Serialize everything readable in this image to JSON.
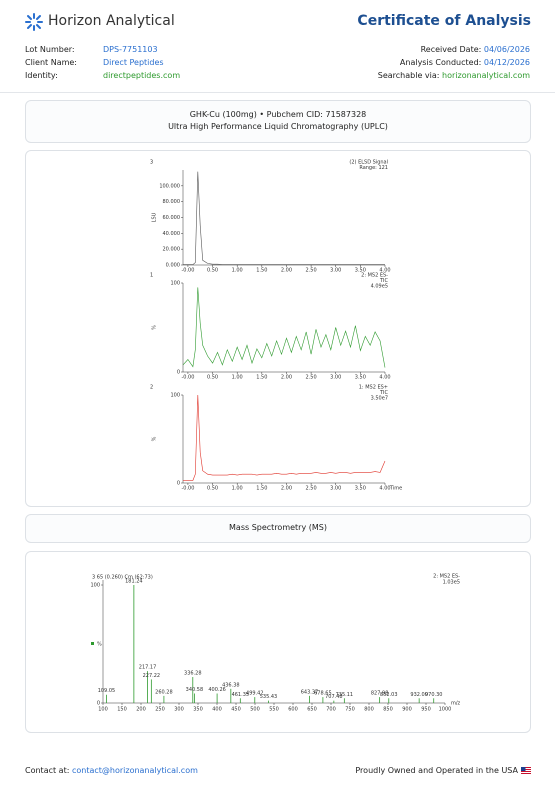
{
  "header": {
    "logo_text": "Horizon Analytical",
    "title": "Certificate of Analysis"
  },
  "info": {
    "left": [
      {
        "label": "Lot Number:",
        "value": "DPS-7751103"
      },
      {
        "label": "Client Name:",
        "value": "Direct Peptides"
      },
      {
        "label": "Identity:",
        "value": "directpeptides.com"
      }
    ],
    "right": [
      {
        "label": "Received Date:",
        "value": "04/06/2026"
      },
      {
        "label": "Analysis Conducted:",
        "value": "04/12/2026"
      },
      {
        "label": "Searchable via:",
        "value": "horizonanalytical.com"
      }
    ]
  },
  "uplc": {
    "compound": "GHK-Cu (100mg) • Pubchem CID: 71587328",
    "method": "Ultra High Performance Liquid Chromatography (UPLC)"
  },
  "chromatography": {
    "x": [
      -0.1,
      0,
      0.1,
      0.15,
      0.2,
      0.25,
      0.3,
      0.4,
      0.5,
      0.6,
      0.7,
      0.8,
      0.9,
      1.0,
      1.1,
      1.2,
      1.3,
      1.4,
      1.5,
      1.6,
      1.7,
      1.8,
      1.9,
      2.0,
      2.1,
      2.2,
      2.3,
      2.4,
      2.5,
      2.6,
      2.7,
      2.8,
      2.9,
      3.0,
      3.1,
      3.2,
      3.3,
      3.4,
      3.5,
      3.6,
      3.7,
      3.8,
      3.9,
      4.0
    ],
    "xlim": [
      -0.1,
      4.0
    ],
    "xticks": [
      {
        "value": 0,
        "label": "-0.00"
      },
      {
        "value": 0.5,
        "label": "0.50"
      },
      {
        "value": 1,
        "label": "1.00"
      },
      {
        "value": 1.5,
        "label": "1.50"
      },
      {
        "value": 2,
        "label": "2.00"
      },
      {
        "value": 2.5,
        "label": "2.50"
      },
      {
        "value": 3,
        "label": "3.00"
      },
      {
        "value": 3.5,
        "label": "3.50"
      },
      {
        "value": 4,
        "label": "4.00"
      }
    ],
    "panels": [
      {
        "index": "3",
        "info": [
          "(2) ELSD Signal",
          "Range: 121"
        ],
        "ylabel": "LSU",
        "color": "#555555",
        "ylim": [
          0,
          120
        ],
        "yticks": [
          {
            "value": 0,
            "label": "0.000"
          },
          {
            "value": 20,
            "label": "20.000"
          },
          {
            "value": 40,
            "label": "40.000"
          },
          {
            "value": 60,
            "label": "60.000"
          },
          {
            "value": 80,
            "label": "80.000"
          },
          {
            "value": 100,
            "label": "100.000"
          }
        ],
        "values": [
          0.5,
          0.5,
          0.5,
          3,
          118,
          50,
          6,
          2,
          1,
          1,
          0.5,
          0.5,
          0.5,
          0.5,
          0.5,
          0.5,
          0.5,
          0.5,
          0.5,
          0.5,
          0.5,
          0.5,
          0.5,
          0.5,
          0.5,
          0.5,
          0.5,
          0.5,
          0.5,
          0.5,
          0.5,
          0.5,
          0.5,
          0.5,
          0.5,
          0.5,
          0.5,
          0.5,
          0.5,
          0.5,
          0.5,
          0.5,
          0.5,
          0.5
        ]
      },
      {
        "index": "1",
        "info": [
          "2: MS2 ES-",
          "TIC",
          "4.09e5"
        ],
        "ylabel": "%",
        "color": "#2e9a2e",
        "ylim": [
          0,
          100
        ],
        "yticks": [
          0,
          100
        ],
        "values": [
          8,
          14,
          6,
          25,
          95,
          55,
          30,
          18,
          10,
          22,
          8,
          25,
          12,
          28,
          14,
          30,
          10,
          26,
          16,
          32,
          18,
          35,
          20,
          38,
          22,
          40,
          25,
          45,
          20,
          48,
          28,
          42,
          25,
          50,
          30,
          46,
          28,
          52,
          24,
          40,
          30,
          45,
          35,
          5
        ]
      },
      {
        "index": "2",
        "info": [
          "1: MS2 ES+",
          "TIC",
          "3.50e7"
        ],
        "ylabel": "%",
        "color": "#e0352b",
        "ylim": [
          0,
          100
        ],
        "yticks": [
          0,
          100
        ],
        "xlabel": "Time",
        "values": [
          3,
          3,
          3,
          10,
          100,
          35,
          14,
          10,
          9,
          9,
          9,
          9,
          10,
          9,
          10,
          10,
          10,
          9,
          10,
          10,
          10,
          11,
          10,
          10,
          11,
          10,
          11,
          11,
          11,
          12,
          11,
          11,
          12,
          11,
          12,
          12,
          11,
          12,
          12,
          12,
          12,
          13,
          12,
          25
        ]
      }
    ]
  },
  "ms": {
    "title": "Mass Spectrometry (MS)",
    "scan": "3 65 (0.260) Cm (62:73)",
    "info": [
      "2: MS2 ES-",
      "1.03e5"
    ],
    "ylabel": "%",
    "xlabel": "m/z",
    "color": "#2e9a2e",
    "xlim": [
      100,
      1000
    ],
    "xticks": [
      100,
      150,
      200,
      250,
      300,
      350,
      400,
      450,
      500,
      550,
      600,
      650,
      700,
      750,
      800,
      850,
      900,
      950,
      1000
    ],
    "ylim": [
      0,
      100
    ],
    "yticks": [
      0,
      100
    ],
    "mz": [
      109.05,
      181.24,
      217.17,
      227.22,
      260.28,
      336.28,
      340.58,
      400.26,
      436.38,
      461.35,
      499.42,
      535.43,
      643.37,
      678.65,
      707.48,
      735.11,
      827.98,
      852.03,
      932.0,
      970.3
    ],
    "mz_labels": [
      "109.05",
      "181.24",
      "217.17",
      "227.22",
      "260.28",
      "336.28",
      "340.58",
      "400.26",
      "436.38",
      "461.35",
      "499.42",
      "535.43",
      "643.37",
      "678.65",
      "707.48",
      "735.11",
      "827.98",
      "852.03",
      "932.00",
      "970.30"
    ],
    "values": [
      7,
      100,
      27,
      20,
      6,
      22,
      8,
      8,
      12,
      4,
      5,
      2,
      6,
      5,
      2,
      4,
      5,
      4,
      4,
      4
    ]
  },
  "footer": {
    "contact_label": "Contact at:",
    "contact_email": "contact@horizonanalytical.com",
    "tagline": "Proudly Owned and Operated in the USA"
  }
}
